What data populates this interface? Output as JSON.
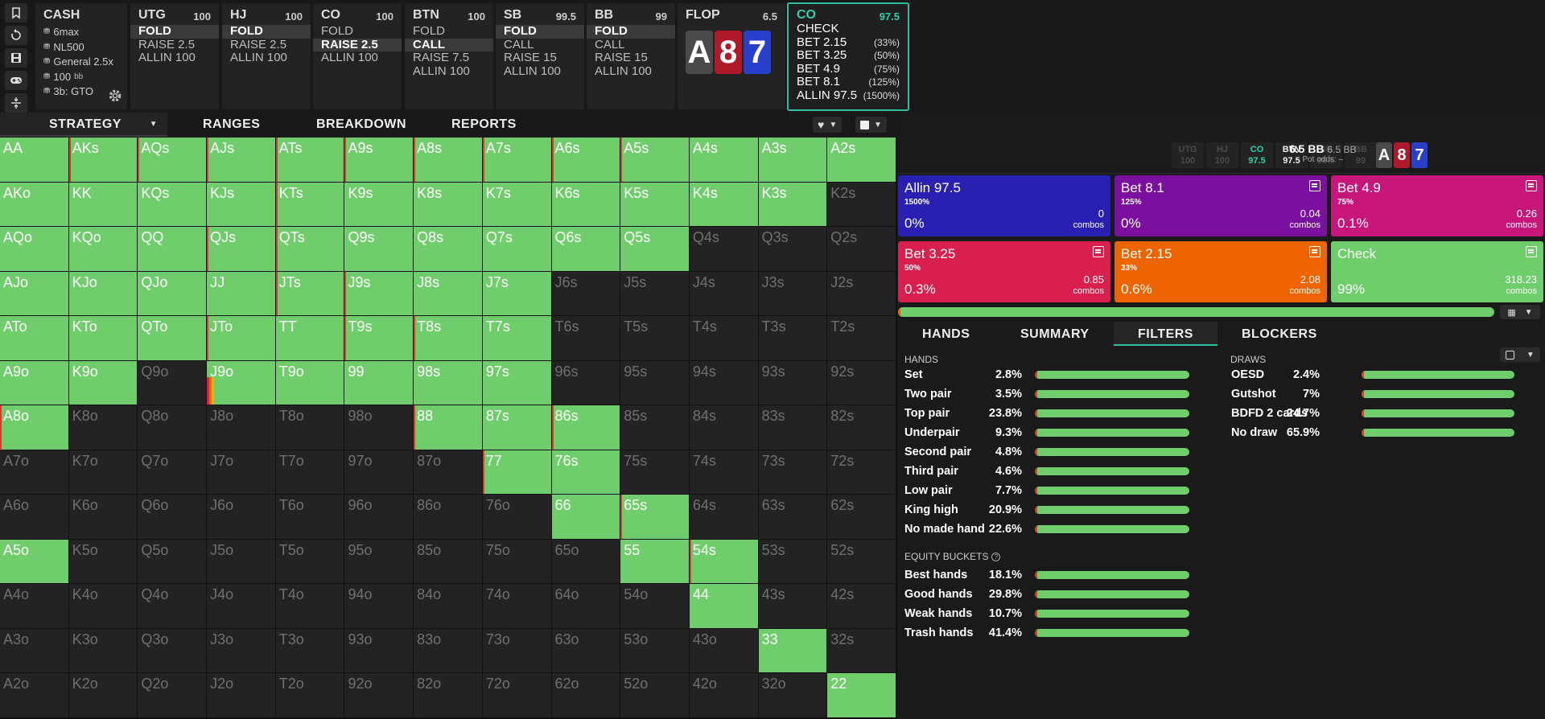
{
  "game": {
    "title": "CASH",
    "rows": [
      "6max",
      "NL500",
      "General 2.5x",
      "100",
      "3b: GTO"
    ],
    "stack_unit": "bb"
  },
  "positions": [
    {
      "name": "UTG",
      "stack": "100",
      "actions": [
        {
          "label": "FOLD",
          "sel": true
        },
        {
          "label": "RAISE 2.5",
          "sel": false
        },
        {
          "label": "ALLIN 100",
          "sel": false
        }
      ]
    },
    {
      "name": "HJ",
      "stack": "100",
      "actions": [
        {
          "label": "FOLD",
          "sel": true
        },
        {
          "label": "RAISE 2.5",
          "sel": false
        },
        {
          "label": "ALLIN 100",
          "sel": false
        }
      ]
    },
    {
      "name": "CO",
      "stack": "100",
      "actions": [
        {
          "label": "FOLD",
          "sel": false
        },
        {
          "label": "RAISE 2.5",
          "sel": true
        },
        {
          "label": "ALLIN 100",
          "sel": false
        }
      ]
    },
    {
      "name": "BTN",
      "stack": "100",
      "actions": [
        {
          "label": "FOLD",
          "sel": false
        },
        {
          "label": "CALL",
          "sel": true
        },
        {
          "label": "RAISE 7.5",
          "sel": false
        },
        {
          "label": "ALLIN 100",
          "sel": false
        }
      ]
    },
    {
      "name": "SB",
      "stack": "99.5",
      "actions": [
        {
          "label": "FOLD",
          "sel": true
        },
        {
          "label": "CALL",
          "sel": false
        },
        {
          "label": "RAISE 15",
          "sel": false
        },
        {
          "label": "ALLIN 100",
          "sel": false
        }
      ]
    },
    {
      "name": "BB",
      "stack": "99",
      "actions": [
        {
          "label": "FOLD",
          "sel": true
        },
        {
          "label": "CALL",
          "sel": false
        },
        {
          "label": "RAISE 15",
          "sel": false
        },
        {
          "label": "ALLIN 100",
          "sel": false
        }
      ]
    }
  ],
  "flop": {
    "name": "FLOP",
    "pot": "6.5",
    "cards": [
      {
        "rank": "A",
        "color": "#4a4a4a"
      },
      {
        "rank": "8",
        "color": "#b0192a"
      },
      {
        "rank": "7",
        "color": "#2a3fc9"
      }
    ]
  },
  "current": {
    "name": "CO",
    "stack": "97.5",
    "actions": [
      {
        "label": "CHECK",
        "pct": ""
      },
      {
        "label": "BET 2.15",
        "pct": "(33%)"
      },
      {
        "label": "BET 3.25",
        "pct": "(50%)"
      },
      {
        "label": "BET 4.9",
        "pct": "(75%)"
      },
      {
        "label": "BET 8.1",
        "pct": "(125%)"
      },
      {
        "label": "ALLIN 97.5",
        "pct": "(1500%)"
      }
    ]
  },
  "tabs": {
    "strategy": "STRATEGY",
    "ranges": "RANGES",
    "breakdown": "BREAKDOWN",
    "reports": "REPORTS"
  },
  "grid": {
    "ranks": [
      "A",
      "K",
      "Q",
      "J",
      "T",
      "9",
      "8",
      "7",
      "6",
      "5",
      "4",
      "3",
      "2"
    ],
    "on": [
      "1111111111111",
      "1111111111110",
      "1111111111000",
      "1111111100000",
      "1111111100000",
      "1101111100000",
      "1000001110000",
      "0000000110000",
      "0000000011000",
      "1000000001100",
      "0000000000100",
      "0000000000010",
      "0000000000001"
    ]
  },
  "right_panel": {
    "positions": [
      {
        "name": "UTG",
        "stack": "100",
        "state": "dim"
      },
      {
        "name": "HJ",
        "stack": "100",
        "state": "dim"
      },
      {
        "name": "CO",
        "stack": "97.5",
        "state": "co"
      },
      {
        "name": "BTN",
        "stack": "97.5",
        "state": "btn"
      },
      {
        "name": "SB",
        "stack": "99.5",
        "state": "dim"
      },
      {
        "name": "BB",
        "stack": "99",
        "state": "dim"
      }
    ],
    "pot_main": "6.5 BB",
    "pot_secondary": "6.5 BB",
    "pot_odds": "Pot odds: –",
    "cards": [
      {
        "rank": "A",
        "color": "#4a4a4a"
      },
      {
        "rank": "8",
        "color": "#b0192a"
      },
      {
        "rank": "7",
        "color": "#2a3fc9"
      }
    ],
    "actions": [
      {
        "name": "Allin 97.5",
        "size": "1500%",
        "freq": "0%",
        "combos": "0",
        "color": "#2a1fb3",
        "icon": false
      },
      {
        "name": "Bet 8.1",
        "size": "125%",
        "freq": "0%",
        "combos": "0.04",
        "color": "#7a0fa0",
        "icon": true
      },
      {
        "name": "Bet 4.9",
        "size": "75%",
        "freq": "0.1%",
        "combos": "0.26",
        "color": "#c8157a",
        "icon": true
      },
      {
        "name": "Bet 3.25",
        "size": "50%",
        "freq": "0.3%",
        "combos": "0.85",
        "color": "#d81f4e",
        "icon": true
      },
      {
        "name": "Bet 2.15",
        "size": "33%",
        "freq": "0.6%",
        "combos": "2.08",
        "color": "#ee6400",
        "icon": true
      },
      {
        "name": "Check",
        "size": "",
        "freq": "99%",
        "combos": "318.23",
        "color": "#6fcd6b",
        "icon": true
      }
    ],
    "combos_label": "combos",
    "subtabs": {
      "hands": "HANDS",
      "summary": "SUMMARY",
      "filters": "FILTERS",
      "blockers": "BLOCKERS"
    },
    "hands_title": "HANDS",
    "hands": [
      {
        "name": "Set",
        "pct": "2.8%"
      },
      {
        "name": "Two pair",
        "pct": "3.5%"
      },
      {
        "name": "Top pair",
        "pct": "23.8%"
      },
      {
        "name": "Underpair",
        "pct": "9.3%"
      },
      {
        "name": "Second pair",
        "pct": "4.8%"
      },
      {
        "name": "Third pair",
        "pct": "4.6%"
      },
      {
        "name": "Low pair",
        "pct": "7.7%"
      },
      {
        "name": "King high",
        "pct": "20.9%"
      },
      {
        "name": "No made hand",
        "pct": "22.6%"
      }
    ],
    "equity_title": "EQUITY BUCKETS",
    "equity": [
      {
        "name": "Best hands",
        "pct": "18.1%"
      },
      {
        "name": "Good hands",
        "pct": "29.8%"
      },
      {
        "name": "Weak hands",
        "pct": "10.7%"
      },
      {
        "name": "Trash hands",
        "pct": "41.4%"
      }
    ],
    "draws_title": "DRAWS",
    "draws": [
      {
        "name": "OESD",
        "pct": "2.4%"
      },
      {
        "name": "Gutshot",
        "pct": "7%"
      },
      {
        "name": "BDFD 2 cards",
        "pct": "24.7%"
      },
      {
        "name": "No draw",
        "pct": "65.9%"
      }
    ]
  }
}
